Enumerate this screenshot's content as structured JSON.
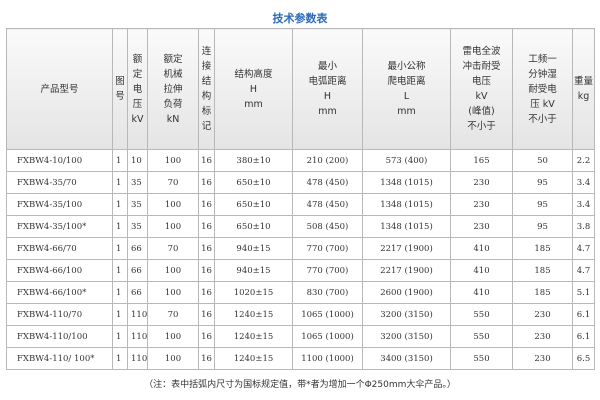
{
  "header": {
    "title": "技术参数表"
  },
  "table": {
    "columns": [
      [
        "产品型号"
      ],
      [
        "图",
        "号"
      ],
      [
        "额",
        "定",
        "电",
        "压",
        "kV"
      ],
      [
        "额定",
        "机械",
        "拉伸",
        "负荷",
        "kN"
      ],
      [
        "连",
        "接",
        "结",
        "构",
        "标",
        "记"
      ],
      [
        "结构高度",
        "H",
        "mm"
      ],
      [
        "最小",
        "电弧距离",
        "H",
        "mm"
      ],
      [
        "最小公称",
        "爬电距离",
        "L",
        "mm"
      ],
      [
        "雷电全波",
        "冲击耐受",
        "电压",
        "kV",
        "(峰值)",
        "不小于"
      ],
      [
        "工频一",
        "分钟湿",
        "耐受电",
        "压 kV",
        "不小于"
      ],
      [
        "重量",
        "kg"
      ]
    ],
    "rows": [
      [
        "FXBW4-10/100",
        "1",
        "10",
        "100",
        "16",
        "380±10",
        "210 (200)",
        "573 (400)",
        "165",
        "50",
        "2.2"
      ],
      [
        "FXBW4-35/70",
        "1",
        "35",
        "70",
        "16",
        "650±10",
        "478 (450)",
        "1348 (1015)",
        "230",
        "95",
        "3.4"
      ],
      [
        "FXBW4-35/100",
        "1",
        "35",
        "100",
        "16",
        "650±10",
        "478 (450)",
        "1348 (1015)",
        "230",
        "95",
        "3.4"
      ],
      [
        "FXBW4-35/100*",
        "1",
        "35",
        "100",
        "16",
        "650±10",
        "508 (450)",
        "1348 (1015)",
        "230",
        "95",
        "3.8"
      ],
      [
        "FXBW4-66/70",
        "1",
        "66",
        "70",
        "16",
        "940±15",
        "770 (700)",
        "2217 (1900)",
        "410",
        "185",
        "4.7"
      ],
      [
        "FXBW4-66/100",
        "1",
        "66",
        "100",
        "16",
        "940±15",
        "770 (700)",
        "2217 (1900)",
        "410",
        "185",
        "4.7"
      ],
      [
        "FXBW4-66/100*",
        "1",
        "66",
        "100",
        "16",
        "1020±15",
        "830 (700)",
        "2600 (1900)",
        "410",
        "185",
        "5.1"
      ],
      [
        "FXBW4-110/70",
        "1",
        "110",
        "70",
        "16",
        "1240±15",
        "1065 (1000)",
        "3200 (3150)",
        "550",
        "230",
        "6.1"
      ],
      [
        "FXBW4-110/100",
        "1",
        "110",
        "100",
        "16",
        "1240±15",
        "1065 (1000)",
        "3200 (3150)",
        "550",
        "230",
        "6.1"
      ],
      [
        "FXBW4-110/ 100*",
        "1",
        "110",
        "100",
        "16",
        "1240±15",
        "1100 (1000)",
        "3400 (3150)",
        "550",
        "230",
        "6.5"
      ]
    ]
  },
  "footer": {
    "note": "（注：表中括弧内尺寸为国标规定值，带*者为增加一个Φ250mm大伞产品。）"
  }
}
